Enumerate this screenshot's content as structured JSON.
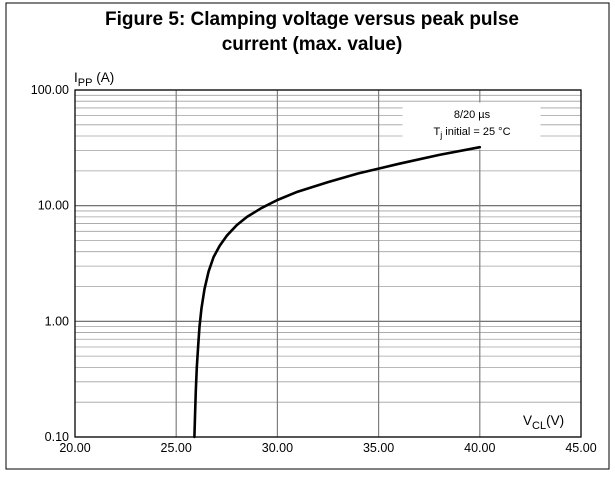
{
  "chart_data": {
    "type": "line",
    "title_line1": "Figure 5: Clamping voltage versus peak pulse",
    "title_line2": "current (max. value)",
    "ylabel_main": "I",
    "ylabel_sub": "PP",
    "ylabel_unit": " (A)",
    "xlabel_main": "V",
    "xlabel_sub": "CL",
    "xlabel_unit": "(V)",
    "x_scale": "linear",
    "y_scale": "log",
    "xlim": [
      20,
      45
    ],
    "ylim": [
      0.1,
      100
    ],
    "x_ticks": [
      20,
      25,
      30,
      35,
      40,
      45
    ],
    "x_tick_labels": [
      "20.00",
      "25.00",
      "30.00",
      "35.00",
      "40.00",
      "45.00"
    ],
    "y_ticks": [
      0.1,
      1,
      10,
      100
    ],
    "y_tick_labels": [
      "0.10",
      "1.00",
      "10.00",
      "100.00"
    ],
    "grid": true,
    "annotation": {
      "line1": "8/20 µs",
      "line2_main": "T",
      "line2_sub": "j",
      "line2_rest": " initial = 25 °C"
    },
    "series": [
      {
        "color": "#000000",
        "x": [
          25.9,
          25.93,
          25.97,
          26.02,
          26.08,
          26.15,
          26.25,
          26.4,
          26.6,
          26.85,
          27.15,
          27.5,
          28.0,
          28.5,
          29.2,
          30.0,
          31.0,
          32.5,
          34.0,
          36.0,
          38.0,
          40.0
        ],
        "y": [
          0.1,
          0.15,
          0.25,
          0.4,
          0.6,
          0.9,
          1.3,
          1.9,
          2.7,
          3.6,
          4.5,
          5.5,
          6.8,
          8.0,
          9.5,
          11.2,
          13.2,
          16.0,
          19.0,
          23.0,
          27.5,
          32.0
        ]
      }
    ]
  }
}
